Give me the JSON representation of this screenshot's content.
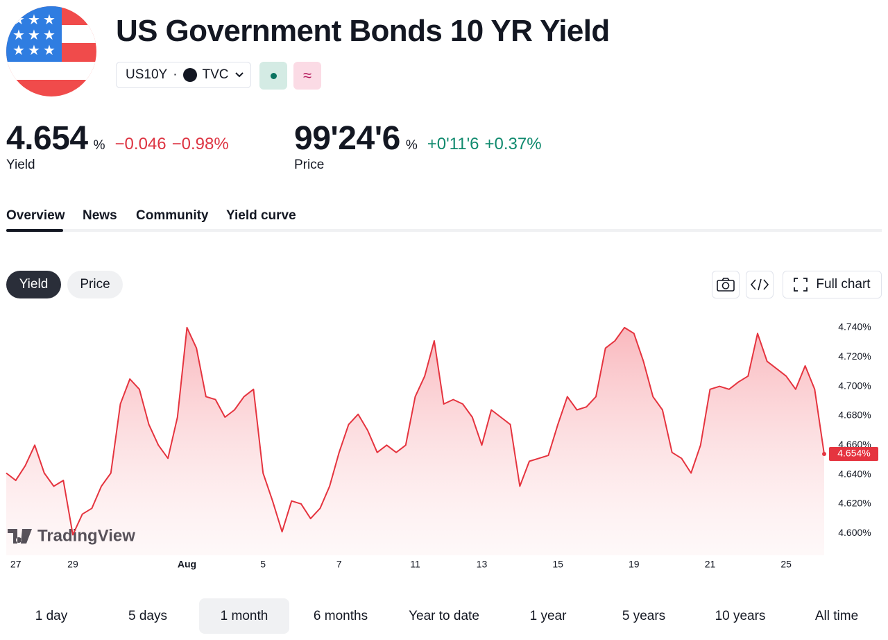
{
  "header": {
    "title": "US Government Bonds 10 YR Yield",
    "symbol": "US10Y",
    "separator": "·",
    "exchange": "TVC"
  },
  "quotes": [
    {
      "value": "4.654",
      "unit": "%",
      "change": "−0.046",
      "change_percent": "−0.98%",
      "label": "Yield"
    },
    {
      "value": "99'24'6",
      "unit": "%",
      "change": "+0'11'6",
      "change_percent": "+0.37%",
      "label": "Price"
    }
  ],
  "tabs": [
    "Overview",
    "News",
    "Community",
    "Yield curve"
  ],
  "chart_toggle": [
    "Yield",
    "Price"
  ],
  "toolbar": {
    "full_chart": "Full chart"
  },
  "chart_data": {
    "type": "area",
    "color": "#e5343f",
    "watermark": "TradingView",
    "categories": [
      null,
      "27",
      null,
      null,
      null,
      null,
      null,
      "29",
      null,
      null,
      null,
      null,
      null,
      null,
      null,
      null,
      null,
      null,
      null,
      "Aug",
      null,
      null,
      null,
      null,
      null,
      null,
      null,
      "5",
      null,
      null,
      null,
      null,
      null,
      null,
      null,
      "7",
      null,
      null,
      null,
      null,
      null,
      null,
      null,
      "11",
      null,
      null,
      null,
      null,
      null,
      null,
      "13",
      null,
      null,
      null,
      null,
      null,
      null,
      null,
      "15",
      null,
      null,
      null,
      null,
      null,
      null,
      null,
      "19",
      null,
      null,
      null,
      null,
      null,
      null,
      null,
      "21",
      null,
      null,
      null,
      null,
      null,
      null,
      null,
      "25",
      null,
      null,
      null,
      null
    ],
    "values": [
      4.641,
      4.636,
      4.646,
      4.66,
      4.641,
      4.632,
      4.636,
      4.599,
      4.613,
      4.617,
      4.632,
      4.641,
      4.688,
      4.705,
      4.698,
      4.674,
      4.66,
      4.651,
      4.679,
      4.74,
      4.726,
      4.693,
      4.691,
      4.679,
      4.684,
      4.693,
      4.698,
      4.641,
      4.622,
      4.601,
      4.622,
      4.62,
      4.61,
      4.617,
      4.632,
      4.655,
      4.674,
      4.681,
      4.67,
      4.655,
      4.66,
      4.655,
      4.66,
      4.693,
      4.707,
      4.731,
      4.688,
      4.691,
      4.688,
      4.679,
      4.66,
      4.684,
      4.679,
      4.674,
      4.632,
      4.649,
      4.651,
      4.653,
      4.674,
      4.693,
      4.684,
      4.686,
      4.693,
      4.726,
      4.731,
      4.74,
      4.736,
      4.717,
      4.693,
      4.684,
      4.655,
      4.651,
      4.641,
      4.66,
      4.698,
      4.7,
      4.698,
      4.703,
      4.707,
      4.736,
      4.717,
      4.712,
      4.707,
      4.698,
      4.714,
      4.698,
      4.654
    ],
    "last_label": {
      "value": 4.654,
      "label": "4.654%"
    },
    "ylim": [
      4.585,
      4.748
    ],
    "yticks": [
      {
        "value": 4.6,
        "label": "4.600%"
      },
      {
        "value": 4.62,
        "label": "4.620%"
      },
      {
        "value": 4.64,
        "label": "4.640%"
      },
      {
        "value": 4.66,
        "label": "4.660%"
      },
      {
        "value": 4.68,
        "label": "4.680%"
      },
      {
        "value": 4.7,
        "label": "4.700%"
      },
      {
        "value": 4.72,
        "label": "4.720%"
      },
      {
        "value": 4.74,
        "label": "4.740%"
      }
    ]
  },
  "ranges": [
    "1 day",
    "5 days",
    "1 month",
    "6 months",
    "Year to date",
    "1 year",
    "5 years",
    "10 years",
    "All time"
  ]
}
